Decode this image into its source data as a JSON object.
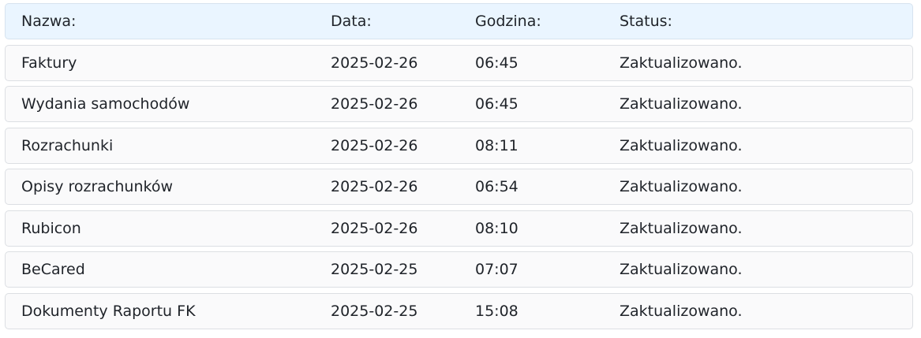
{
  "header": {
    "name": "Nazwa:",
    "date": "Data:",
    "time": "Godzina:",
    "status": "Status:"
  },
  "rows": [
    {
      "name": "Faktury",
      "date": "2025-02-26",
      "time": "06:45",
      "status": "Zaktualizowano."
    },
    {
      "name": "Wydania samochodów",
      "date": "2025-02-26",
      "time": "06:45",
      "status": "Zaktualizowano."
    },
    {
      "name": "Rozrachunki",
      "date": "2025-02-26",
      "time": "08:11",
      "status": "Zaktualizowano."
    },
    {
      "name": "Opisy rozrachunków",
      "date": "2025-02-26",
      "time": "06:54",
      "status": "Zaktualizowano."
    },
    {
      "name": "Rubicon",
      "date": "2025-02-26",
      "time": "08:10",
      "status": "Zaktualizowano."
    },
    {
      "name": "BeCared",
      "date": "2025-02-25",
      "time": "07:07",
      "status": "Zaktualizowano."
    },
    {
      "name": "Dokumenty Raportu FK",
      "date": "2025-02-25",
      "time": "15:08",
      "status": "Zaktualizowano."
    }
  ]
}
